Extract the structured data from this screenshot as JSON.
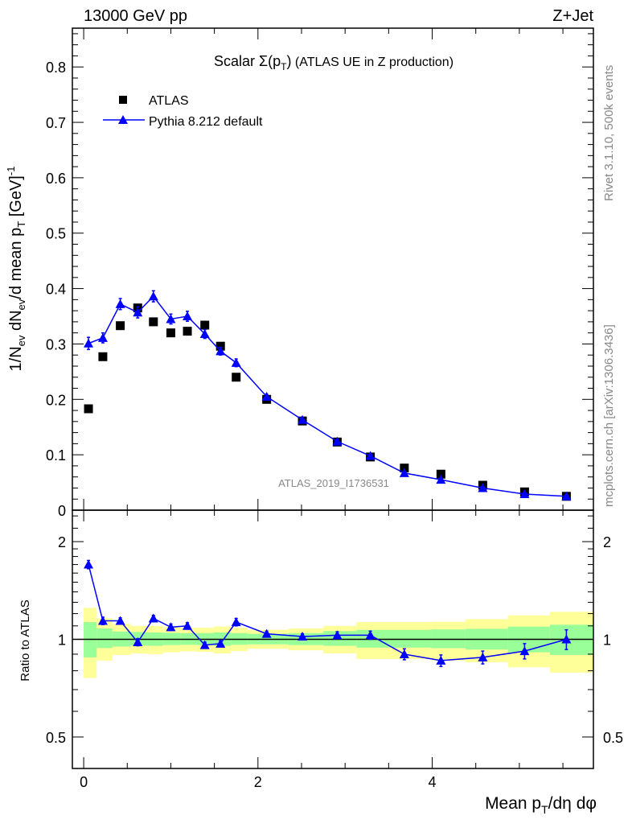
{
  "header": {
    "left": "13000 GeV pp",
    "right": "Z+Jet"
  },
  "side": {
    "rivet": "Rivet 3.1.10,  500k events",
    "mcplots": "mcplots.cern.ch [arXiv:1306.3436]"
  },
  "watermark": "ATLAS_2019_I1736531",
  "colors": {
    "data": "#000000",
    "mc": "#0000ff",
    "band_inner": "#99ff99",
    "band_outer": "#ffff99"
  },
  "chart_data": [
    {
      "type": "scatter",
      "title": {
        "pre": "Scalar ",
        "sym": "Σ(p",
        "sub": "T",
        "post": ")",
        "rest": " (ATLAS UE in Z production)"
      },
      "ylabel": {
        "a": "1/N",
        "a_sub": "ev",
        "b": " dN",
        "b_sub": "ev",
        "c": "/d mean p",
        "c_sub": "T",
        "d": " [GeV]",
        "d_sup": "-1"
      },
      "xlim": [
        -0.13,
        5.85
      ],
      "ylim": [
        0,
        0.87
      ],
      "yticks": [
        "0",
        "0.1",
        "0.2",
        "0.3",
        "0.4",
        "0.5",
        "0.6",
        "0.7",
        "0.8"
      ],
      "legend": {
        "position": "top-left",
        "entries": [
          "ATLAS",
          "Pythia 8.212 default"
        ]
      },
      "x": [
        0.055,
        0.22,
        0.42,
        0.62,
        0.8,
        1.0,
        1.19,
        1.39,
        1.57,
        1.75,
        2.1,
        2.51,
        2.91,
        3.29,
        3.68,
        4.1,
        4.58,
        5.06,
        5.54
      ],
      "series": [
        {
          "name": "ATLAS",
          "values": [
            0.183,
            0.277,
            0.333,
            0.365,
            0.34,
            0.32,
            0.323,
            0.334,
            0.296,
            0.24,
            0.2,
            0.161,
            0.123,
            0.096,
            0.076,
            0.065,
            0.045,
            0.033,
            0.025
          ]
        },
        {
          "name": "Pythia 8.212 default",
          "values": [
            0.301,
            0.311,
            0.372,
            0.357,
            0.386,
            0.345,
            0.35,
            0.318,
            0.287,
            0.266,
            0.205,
            0.163,
            0.124,
            0.098,
            0.067,
            0.055,
            0.04,
            0.029,
            0.025
          ],
          "errors": [
            0.011,
            0.009,
            0.01,
            0.01,
            0.01,
            0.009,
            0.009,
            0.008,
            0.007,
            0.007,
            0.004,
            0.003,
            0.003,
            0.003,
            0.002,
            0.002,
            0.002,
            0.002,
            0.002
          ]
        }
      ]
    },
    {
      "type": "line",
      "ylabel": "Ratio to ATLAS",
      "xlabel": {
        "a": "Mean p",
        "a_sub": "T",
        "b": "/dη dφ"
      },
      "ylim": [
        0.4,
        2.5
      ],
      "yscale": "log",
      "yticks": [
        {
          "v": 0.5,
          "label": "0.5"
        },
        {
          "v": 1,
          "label": "1"
        },
        {
          "v": 2,
          "label": "2"
        }
      ],
      "xticks": [
        {
          "v": 0,
          "label": "0"
        },
        {
          "v": 2,
          "label": "2"
        },
        {
          "v": 4,
          "label": "4"
        }
      ],
      "bin_edges": [
        0,
        0.15,
        0.33,
        0.54,
        0.73,
        0.91,
        1.11,
        1.3,
        1.49,
        1.69,
        1.88,
        2.35,
        2.75,
        3.13,
        3.52,
        3.99,
        4.38,
        4.87,
        5.35,
        5.84
      ],
      "band_outer_hi": [
        1.25,
        1.16,
        1.115,
        1.1,
        1.1,
        1.09,
        1.085,
        1.085,
        1.095,
        1.085,
        1.07,
        1.08,
        1.1,
        1.13,
        1.13,
        1.132,
        1.154,
        1.185,
        1.215
      ],
      "band_inner_hi": [
        1.13,
        1.08,
        1.057,
        1.053,
        1.05,
        1.047,
        1.045,
        1.045,
        1.05,
        1.045,
        1.04,
        1.045,
        1.06,
        1.069,
        1.069,
        1.073,
        1.077,
        1.094,
        1.109
      ],
      "band_inner_lo": [
        0.88,
        0.94,
        0.95,
        0.957,
        0.955,
        0.96,
        0.962,
        0.96,
        0.955,
        0.962,
        0.965,
        0.96,
        0.955,
        0.943,
        0.943,
        0.939,
        0.93,
        0.912,
        0.895
      ],
      "band_outer_lo": [
        0.76,
        0.86,
        0.895,
        0.904,
        0.9,
        0.912,
        0.918,
        0.915,
        0.905,
        0.92,
        0.935,
        0.925,
        0.905,
        0.87,
        0.87,
        0.86,
        0.85,
        0.82,
        0.79
      ],
      "x": [
        0.055,
        0.22,
        0.42,
        0.62,
        0.8,
        1.0,
        1.19,
        1.39,
        1.57,
        1.75,
        2.1,
        2.51,
        2.91,
        3.29,
        3.68,
        4.1,
        4.58,
        5.06,
        5.54
      ],
      "series": [
        {
          "name": "Pythia 8.212 default / ATLAS",
          "values": [
            1.7,
            1.14,
            1.14,
            0.98,
            1.16,
            1.09,
            1.1,
            0.96,
            0.97,
            1.13,
            1.04,
            1.02,
            1.03,
            1.03,
            0.9,
            0.86,
            0.88,
            0.92,
            1.0
          ],
          "errors": [
            0.05,
            0.03,
            0.025,
            0.025,
            0.025,
            0.025,
            0.025,
            0.02,
            0.02,
            0.03,
            0.02,
            0.02,
            0.025,
            0.03,
            0.035,
            0.035,
            0.04,
            0.05,
            0.07
          ]
        }
      ]
    }
  ]
}
